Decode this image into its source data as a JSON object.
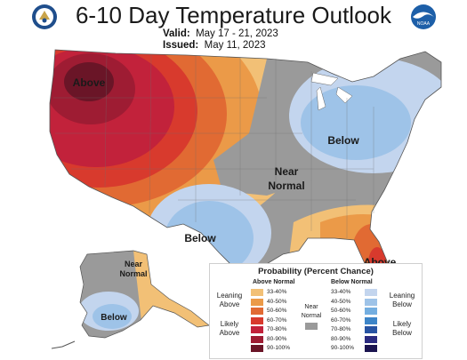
{
  "header": {
    "title": "6-10 Day Temperature Outlook",
    "valid_label": "Valid:",
    "valid_dates": "May 17 - 21, 2023",
    "issued_label": "Issued:",
    "issued_date": "May 11, 2023"
  },
  "logos": {
    "left": "doc-seal-icon",
    "right": "noaa-logo-icon",
    "noaa_text": "NOAA"
  },
  "map_labels": {
    "above_nw": "Above",
    "near_normal_center_1": "Near",
    "near_normal_center_2": "Normal",
    "below_ne": "Below",
    "below_tx": "Below",
    "above_fl": "Above",
    "near_normal_ak_1": "Near",
    "near_normal_ak_2": "Normal",
    "below_ak": "Below"
  },
  "legend": {
    "title": "Probability (Percent Chance)",
    "above_header": "Above Normal",
    "below_header": "Below Normal",
    "leaning_above": "Leaning Above",
    "likely_above": "Likely Above",
    "near_normal": "Near Normal",
    "leaning_below": "Leaning Below",
    "likely_below": "Likely Below",
    "above_bins": [
      {
        "label": "33-40%",
        "color": "#f2c076"
      },
      {
        "label": "40-50%",
        "color": "#eb9a48"
      },
      {
        "label": "50-60%",
        "color": "#e16a33"
      },
      {
        "label": "60-70%",
        "color": "#d83a2d"
      },
      {
        "label": "70-80%",
        "color": "#c2223b"
      },
      {
        "label": "80-90%",
        "color": "#9e1c33"
      },
      {
        "label": "90-100%",
        "color": "#6a1527"
      }
    ],
    "below_bins": [
      {
        "label": "33-40%",
        "color": "#c3d5ee"
      },
      {
        "label": "40-50%",
        "color": "#9ec3e8"
      },
      {
        "label": "50-60%",
        "color": "#74aee0"
      },
      {
        "label": "60-70%",
        "color": "#3d85c8"
      },
      {
        "label": "70-80%",
        "color": "#2854a3"
      },
      {
        "label": "80-90%",
        "color": "#2b2b80"
      },
      {
        "label": "90-100%",
        "color": "#1b1450"
      }
    ],
    "near_normal_color": "#9a9a9a"
  }
}
